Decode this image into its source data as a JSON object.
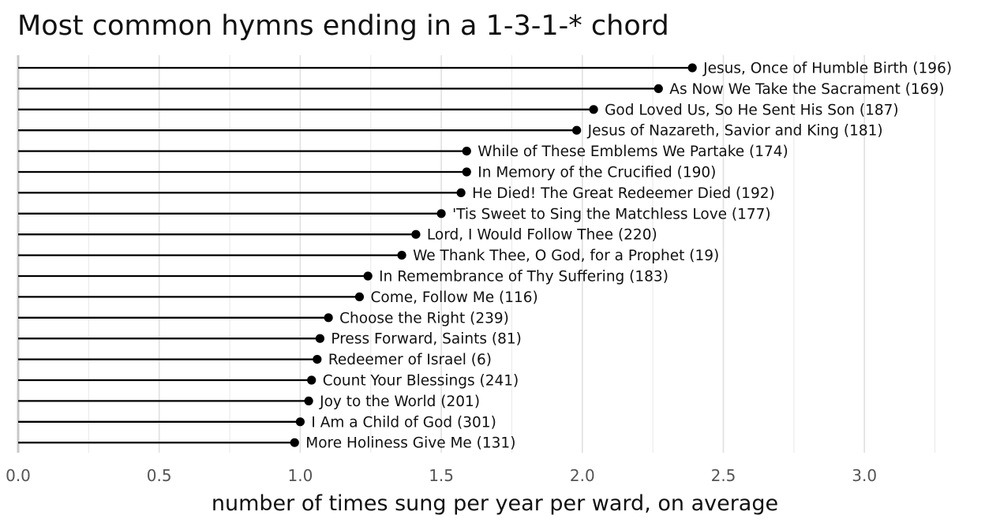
{
  "chart_data": {
    "type": "lollipop",
    "title": "Most common hymns ending in a 1-3-1-* chord",
    "xlabel": "number of times sung per year per ward, on average",
    "ylabel": "",
    "xlim": [
      0,
      3.25
    ],
    "x_ticks": [
      "0.0",
      "0.5",
      "1.0",
      "1.5",
      "2.0",
      "2.5",
      "3.0"
    ],
    "grid": true,
    "legend": "none",
    "orientation": "horizontal",
    "categories": [
      "Jesus, Once of Humble Birth (196)",
      "As Now We Take the Sacrament (169)",
      "God Loved Us, So He Sent His Son (187)",
      "Jesus of Nazareth, Savior and King (181)",
      "While of These Emblems We Partake (174)",
      "In Memory of the Crucified (190)",
      "He Died! The Great Redeemer Died (192)",
      "'Tis Sweet to Sing the Matchless Love (177)",
      "Lord, I Would Follow Thee (220)",
      "We Thank Thee, O God, for a Prophet (19)",
      "In Remembrance of Thy Suffering (183)",
      "Come, Follow Me (116)",
      "Choose the Right (239)",
      "Press Forward, Saints (81)",
      "Redeemer of Israel (6)",
      "Count Your Blessings (241)",
      "Joy to the World (201)",
      "I Am a Child of God (301)",
      "More Holiness Give Me (131)"
    ],
    "values": [
      2.39,
      2.27,
      2.04,
      1.98,
      1.59,
      1.59,
      1.57,
      1.5,
      1.41,
      1.36,
      1.24,
      1.21,
      1.1,
      1.07,
      1.06,
      1.04,
      1.03,
      1.0,
      0.98
    ],
    "colors": {
      "stem": "#000000",
      "dot": "#000000",
      "grid": "#e0e0e0",
      "text": "#111111",
      "tick": "#555555"
    }
  }
}
